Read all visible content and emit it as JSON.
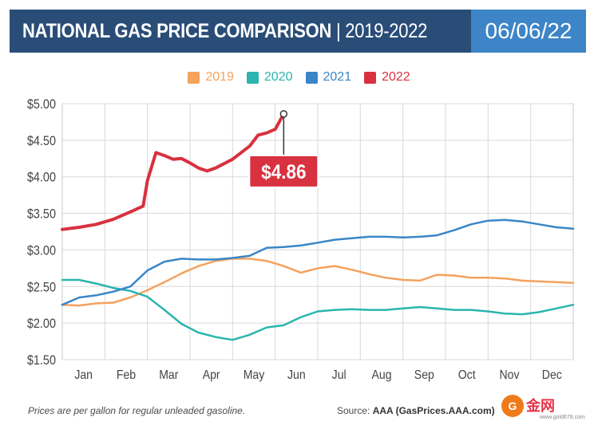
{
  "header": {
    "title_main": "NATIONAL GAS PRICE COMPARISON",
    "title_sep": " | ",
    "title_years": "2019-2022",
    "date": "06/06/22"
  },
  "colors": {
    "header_bg": "#2a4d78",
    "date_bg": "#3d85c6",
    "series_2019": "#f5a25d",
    "series_2020": "#2bb5ae",
    "series_2021": "#3a86c8",
    "series_2022": "#d8313f"
  },
  "callout": {
    "label": "$4.86"
  },
  "footer": {
    "note": "Prices are per gallon for regular unleaded gasoline.",
    "source_prefix": "Source: ",
    "source_bold": "AAA (GasPrices.AAA.com)"
  },
  "watermark": {
    "logo_text": "G",
    "text": "金网",
    "url": "www.gold678.com"
  },
  "chart_data": {
    "type": "line",
    "title": "NATIONAL GAS PRICE COMPARISON | 2019-2022",
    "xlabel": "",
    "ylabel": "",
    "x_tick_labels": [
      "Jan",
      "Feb",
      "Mar",
      "Apr",
      "May",
      "Jun",
      "Jul",
      "Aug",
      "Sep",
      "Oct",
      "Nov",
      "Dec"
    ],
    "y_tick_labels": [
      "$1.50",
      "$2.00",
      "$2.50",
      "$3.00",
      "$3.50",
      "$4.00",
      "$4.50",
      "$5.00"
    ],
    "y_ticks": [
      1.5,
      2.0,
      2.5,
      3.0,
      3.5,
      4.0,
      4.5,
      5.0
    ],
    "ylim": [
      1.5,
      5.0
    ],
    "xlim": [
      0,
      12
    ],
    "grid": true,
    "legend_position": "top-center",
    "series": [
      {
        "name": "2019",
        "x": [
          0,
          0.4,
          0.8,
          1.2,
          1.6,
          2.0,
          2.4,
          2.8,
          3.2,
          3.6,
          4.0,
          4.4,
          4.8,
          5.2,
          5.6,
          6.0,
          6.4,
          6.8,
          7.2,
          7.6,
          8.0,
          8.4,
          8.8,
          9.2,
          9.6,
          10.0,
          10.4,
          10.8,
          11.2,
          11.6,
          12.0
        ],
        "y": [
          2.25,
          2.24,
          2.27,
          2.28,
          2.35,
          2.45,
          2.56,
          2.68,
          2.78,
          2.85,
          2.88,
          2.88,
          2.85,
          2.78,
          2.69,
          2.75,
          2.78,
          2.73,
          2.67,
          2.62,
          2.59,
          2.58,
          2.66,
          2.65,
          2.62,
          2.62,
          2.61,
          2.58,
          2.57,
          2.56,
          2.55
        ]
      },
      {
        "name": "2020",
        "x": [
          0,
          0.4,
          0.8,
          1.2,
          1.6,
          2.0,
          2.4,
          2.8,
          3.2,
          3.6,
          4.0,
          4.4,
          4.8,
          5.2,
          5.6,
          6.0,
          6.4,
          6.8,
          7.2,
          7.6,
          8.0,
          8.4,
          8.8,
          9.2,
          9.6,
          10.0,
          10.4,
          10.8,
          11.2,
          11.6,
          12.0
        ],
        "y": [
          2.59,
          2.59,
          2.54,
          2.48,
          2.44,
          2.36,
          2.18,
          1.99,
          1.87,
          1.81,
          1.77,
          1.84,
          1.94,
          1.97,
          2.08,
          2.16,
          2.18,
          2.19,
          2.18,
          2.18,
          2.2,
          2.22,
          2.2,
          2.18,
          2.18,
          2.16,
          2.13,
          2.12,
          2.15,
          2.2,
          2.25
        ]
      },
      {
        "name": "2021",
        "x": [
          0,
          0.4,
          0.8,
          1.2,
          1.6,
          2.0,
          2.4,
          2.8,
          3.2,
          3.6,
          4.0,
          4.4,
          4.8,
          5.2,
          5.6,
          6.0,
          6.4,
          6.8,
          7.2,
          7.6,
          8.0,
          8.4,
          8.8,
          9.2,
          9.6,
          10.0,
          10.4,
          10.8,
          11.2,
          11.6,
          12.0
        ],
        "y": [
          2.25,
          2.35,
          2.38,
          2.43,
          2.5,
          2.72,
          2.84,
          2.88,
          2.87,
          2.87,
          2.89,
          2.92,
          3.03,
          3.04,
          3.06,
          3.1,
          3.14,
          3.16,
          3.18,
          3.18,
          3.17,
          3.18,
          3.2,
          3.27,
          3.35,
          3.4,
          3.41,
          3.39,
          3.35,
          3.31,
          3.29
        ]
      },
      {
        "name": "2022",
        "x": [
          0,
          0.4,
          0.8,
          1.2,
          1.6,
          1.9,
          2.0,
          2.2,
          2.4,
          2.6,
          2.8,
          3.0,
          3.2,
          3.4,
          3.6,
          3.8,
          4.0,
          4.2,
          4.4,
          4.6,
          4.8,
          5.0,
          5.2
        ],
        "y": [
          3.28,
          3.31,
          3.35,
          3.42,
          3.52,
          3.6,
          3.95,
          4.33,
          4.29,
          4.24,
          4.25,
          4.19,
          4.12,
          4.08,
          4.12,
          4.18,
          4.24,
          4.33,
          4.42,
          4.57,
          4.6,
          4.65,
          4.86
        ]
      }
    ],
    "annotations": [
      {
        "series": "2022",
        "label": "$4.86",
        "x": 5.2,
        "y": 4.86
      }
    ]
  }
}
